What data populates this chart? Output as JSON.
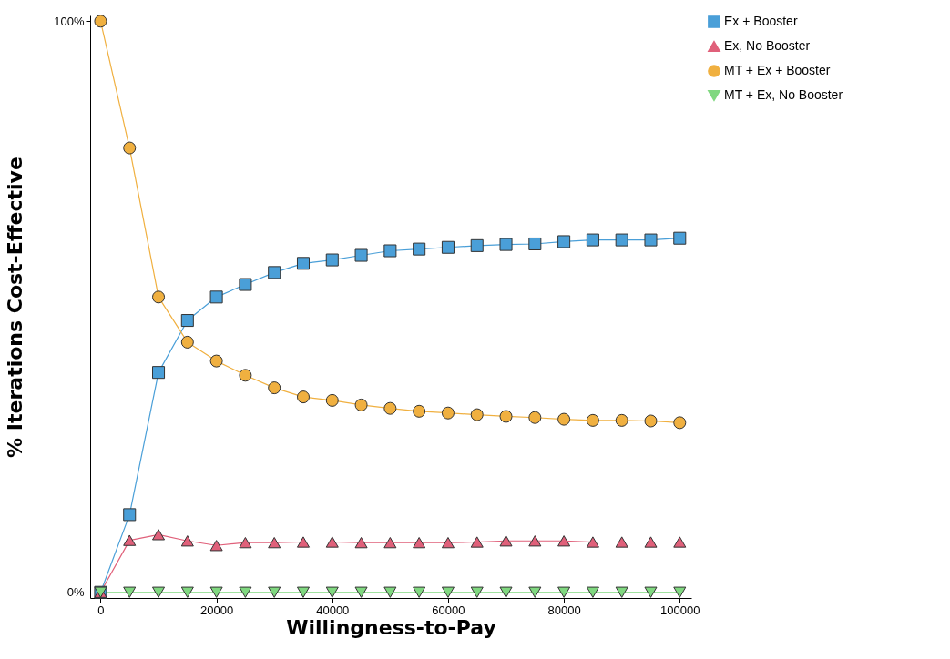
{
  "chart_data": {
    "type": "line",
    "xlabel": "Willingness-to-Pay",
    "ylabel": "% Iterations Cost-Effective",
    "x": [
      0,
      5000,
      10000,
      15000,
      20000,
      25000,
      30000,
      35000,
      40000,
      45000,
      50000,
      55000,
      60000,
      65000,
      70000,
      75000,
      80000,
      85000,
      90000,
      95000,
      100000
    ],
    "xlim": [
      -1800,
      102000
    ],
    "xticks": [
      0,
      20000,
      40000,
      60000,
      80000,
      100000
    ],
    "ylim": [
      -1,
      101
    ],
    "yticks": [
      {
        "value": 0,
        "label": "0%"
      },
      {
        "value": 100,
        "label": "100%"
      }
    ],
    "grid": false,
    "legend": "right",
    "series": [
      {
        "name": "Ex + Booster",
        "color": "#4a9fd8",
        "marker": "square",
        "values": [
          0,
          13.6,
          38.5,
          47.6,
          51.7,
          53.9,
          56.0,
          57.6,
          58.2,
          59.0,
          59.8,
          60.1,
          60.4,
          60.7,
          60.9,
          61.0,
          61.4,
          61.7,
          61.7,
          61.7,
          62.0
        ]
      },
      {
        "name": "Ex, No Booster",
        "color": "#e0607a",
        "marker": "triangle",
        "values": [
          0,
          9.1,
          10.1,
          9.0,
          8.2,
          8.7,
          8.7,
          8.8,
          8.8,
          8.7,
          8.7,
          8.7,
          8.7,
          8.8,
          9.0,
          9.0,
          9.0,
          8.8,
          8.8,
          8.8,
          8.8
        ]
      },
      {
        "name": "MT + Ex + Booster",
        "color": "#f0b040",
        "marker": "circle",
        "values": [
          100,
          77.8,
          51.7,
          43.8,
          40.5,
          38.0,
          35.8,
          34.2,
          33.6,
          32.8,
          32.2,
          31.7,
          31.4,
          31.1,
          30.8,
          30.6,
          30.3,
          30.1,
          30.1,
          30.0,
          29.7
        ]
      },
      {
        "name": "MT + Ex, No Booster",
        "color": "#80d880",
        "marker": "triangle_down",
        "values": [
          0,
          0,
          0,
          0,
          0,
          0,
          0,
          0,
          0,
          0,
          0,
          0,
          0,
          0,
          0,
          0,
          0,
          0,
          0,
          0,
          0
        ]
      }
    ]
  }
}
